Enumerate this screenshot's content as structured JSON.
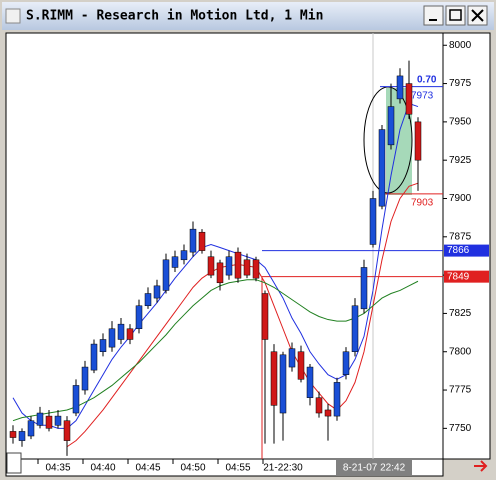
{
  "chart_data": {
    "type": "candlestick",
    "title": "S.RIMM - Research in Motion Ltd, 1 Min",
    "categories": [
      null,
      null,
      null,
      null,
      null,
      "04:35",
      null,
      null,
      null,
      null,
      "04:40",
      null,
      null,
      null,
      null,
      "04:45",
      null,
      null,
      null,
      null,
      "04:50",
      null,
      null,
      null,
      null,
      "04:55",
      null,
      null,
      null,
      null,
      "21-22:30",
      null,
      null,
      null,
      null,
      null,
      null,
      null,
      null,
      null,
      null,
      null,
      null,
      null,
      null,
      null
    ],
    "open": [
      7748,
      7742,
      7745,
      7752,
      7758,
      7752,
      7755,
      7760,
      7775,
      7788,
      7800,
      7803,
      7808,
      7815,
      7815,
      7830,
      7835,
      7840,
      7855,
      7860,
      7865,
      7878,
      7862,
      7858,
      7850,
      7865,
      7860,
      7860,
      7838,
      7800,
      7760,
      7790,
      7800,
      7770,
      7770,
      7762,
      7758,
      7785,
      7800,
      7828,
      7870,
      7895,
      7935,
      7965,
      7975,
      7950
    ],
    "high": [
      7752,
      7750,
      7758,
      7764,
      7762,
      7762,
      7758,
      7782,
      7794,
      7808,
      7812,
      7820,
      7822,
      7818,
      7834,
      7842,
      7847,
      7864,
      7866,
      7870,
      7885,
      7880,
      7866,
      7860,
      7866,
      7868,
      7864,
      7862,
      7840,
      7805,
      7800,
      7806,
      7804,
      7792,
      7774,
      7766,
      7783,
      7803,
      7835,
      7860,
      7905,
      7948,
      7975,
      7985,
      7990,
      7953
    ],
    "low": [
      7740,
      7738,
      7743,
      7750,
      7748,
      7750,
      7732,
      7758,
      7772,
      7786,
      7797,
      7800,
      7805,
      7805,
      7812,
      7828,
      7832,
      7838,
      7852,
      7857,
      7862,
      7864,
      7848,
      7840,
      7847,
      7845,
      7848,
      7846,
      7740,
      7740,
      7742,
      7787,
      7780,
      7765,
      7757,
      7742,
      7755,
      7782,
      7797,
      7825,
      7868,
      7893,
      7932,
      7962,
      7952,
      7905
    ],
    "close": [
      7744,
      7748,
      7755,
      7760,
      7750,
      7758,
      7742,
      7778,
      7790,
      7805,
      7808,
      7815,
      7818,
      7808,
      7830,
      7838,
      7843,
      7860,
      7862,
      7866,
      7880,
      7866,
      7850,
      7845,
      7862,
      7848,
      7850,
      7848,
      7808,
      7765,
      7798,
      7802,
      7782,
      7790,
      7760,
      7758,
      7780,
      7800,
      7830,
      7855,
      7900,
      7945,
      7960,
      7980,
      7955,
      7925
    ],
    "up_color": "#1a4fd6",
    "down_color": "#d01818",
    "series": [
      {
        "color": "#2030e0",
        "values": [
          7770,
          7760,
          7755,
          7752,
          7752,
          7750,
          7750,
          7755,
          7765,
          7775,
          7785,
          7795,
          7803,
          7810,
          7818,
          7825,
          7832,
          7840,
          7848,
          7855,
          7862,
          7868,
          7870,
          7868,
          7866,
          7864,
          7862,
          7860,
          7855,
          7845,
          7835,
          7822,
          7812,
          7800,
          7792,
          7785,
          7782,
          7785,
          7795,
          7810,
          7840,
          7880,
          7915,
          7945,
          7962,
          7960
        ]
      },
      {
        "color": "#e02020",
        "values": [
          null,
          null,
          null,
          null,
          null,
          null,
          7738,
          7742,
          7748,
          7755,
          7762,
          7770,
          7778,
          7786,
          7794,
          7802,
          7810,
          7818,
          7826,
          7834,
          7842,
          7848,
          7852,
          7855,
          7856,
          7857,
          7856,
          7855,
          7845,
          7830,
          7815,
          7800,
          7790,
          7780,
          7773,
          7766,
          7762,
          7768,
          7780,
          7800,
          7830,
          7860,
          7885,
          7900,
          7908,
          7910
        ]
      },
      {
        "color": "#208020",
        "values": [
          7755,
          7757,
          7758,
          7759,
          7760,
          7761,
          7762,
          7764,
          7767,
          7770,
          7774,
          7778,
          7783,
          7788,
          7793,
          7799,
          7805,
          7811,
          7818,
          7824,
          7830,
          7835,
          7840,
          7843,
          7845,
          7846,
          7847,
          7847,
          7845,
          7842,
          7838,
          7834,
          7830,
          7826,
          7823,
          7821,
          7820,
          7820,
          7822,
          7825,
          7830,
          7835,
          7838,
          7840,
          7843,
          7846
        ]
      }
    ],
    "ylim": [
      7730,
      8008
    ],
    "yticks": [
      7750,
      7775,
      7800,
      7825,
      7850,
      7875,
      7900,
      7925,
      7950,
      7975,
      8000
    ],
    "price_lines": [
      {
        "value": 7866,
        "color": "#2030e0"
      },
      {
        "value": 7849,
        "color": "#e02020"
      }
    ],
    "alert_lines": [
      {
        "value": 7973,
        "color": "#2030e0",
        "label": "7973"
      },
      {
        "value": 7903,
        "color": "#e02020",
        "label": "7903"
      }
    ],
    "annotation": "0.70",
    "cursor_index": 40,
    "cursor_label": "8-21-07 22:42"
  }
}
